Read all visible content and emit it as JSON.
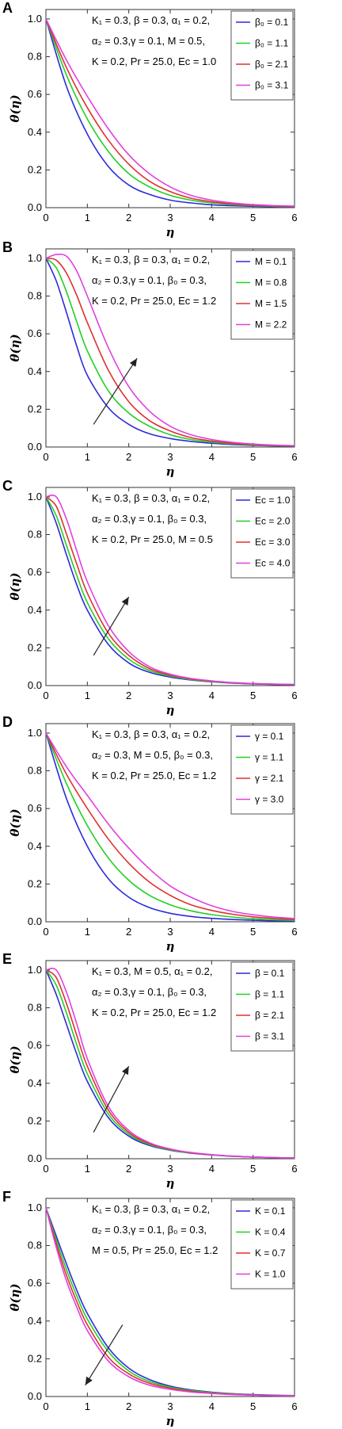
{
  "chart_data": [
    {
      "type": "line",
      "panel_label": "A",
      "xlabel": "η",
      "ylabel": "θ(η)",
      "xlim": [
        0,
        6
      ],
      "ylim": [
        0,
        1.05
      ],
      "xticks": [
        "0",
        "1",
        "2",
        "3",
        "4",
        "5",
        "6"
      ],
      "yticks": [
        "0.0",
        "0.2",
        "0.4",
        "0.6",
        "0.8",
        "1.0"
      ],
      "parameters": [
        "K₁ = 0.3, β = 0.3, α₁ = 0.2,",
        "α₂ = 0.3,γ = 0.1, M = 0.5,",
        "K = 0.2, Pr = 25.0, Ec = 1.0"
      ],
      "legend_position": "top-right",
      "annotation_arrow": null,
      "x": [
        0,
        0.5,
        1,
        1.5,
        2,
        2.5,
        3,
        3.5,
        4,
        4.5,
        5,
        5.5,
        6
      ],
      "series": [
        {
          "name": "β₀ = 0.1",
          "color": "#2b2bd9",
          "values": [
            1.0,
            0.64,
            0.39,
            0.22,
            0.12,
            0.07,
            0.04,
            0.025,
            0.015,
            0.01,
            0.007,
            0.005,
            0.003
          ]
        },
        {
          "name": "β₀ = 1.1",
          "color": "#22d022",
          "values": [
            1.0,
            0.7,
            0.47,
            0.3,
            0.18,
            0.11,
            0.065,
            0.04,
            0.025,
            0.016,
            0.011,
            0.007,
            0.005
          ]
        },
        {
          "name": "β₀ = 2.1",
          "color": "#e03030",
          "values": [
            1.0,
            0.74,
            0.53,
            0.36,
            0.23,
            0.14,
            0.085,
            0.05,
            0.032,
            0.02,
            0.013,
            0.009,
            0.006
          ]
        },
        {
          "name": "β₀ = 3.1",
          "color": "#e040e0",
          "values": [
            1.0,
            0.78,
            0.59,
            0.42,
            0.28,
            0.18,
            0.11,
            0.065,
            0.04,
            0.025,
            0.016,
            0.011,
            0.008
          ]
        }
      ]
    },
    {
      "type": "line",
      "panel_label": "B",
      "xlabel": "η",
      "ylabel": "θ(η)",
      "xlim": [
        0,
        6
      ],
      "ylim": [
        0,
        1.05
      ],
      "xticks": [
        "0",
        "1",
        "2",
        "3",
        "4",
        "5",
        "6"
      ],
      "yticks": [
        "0.0",
        "0.2",
        "0.4",
        "0.6",
        "0.8",
        "1.0"
      ],
      "parameters": [
        "K₁ = 0.3, β = 0.3, α₁ = 0.2,",
        "α₂ = 0.3,γ = 0.1, β₀ = 0.3,",
        "K = 0.2, Pr = 25.0, Ec = 1.2"
      ],
      "legend_position": "top-right",
      "annotation_arrow": {
        "from": [
          1.15,
          0.12
        ],
        "to": [
          2.2,
          0.47
        ]
      },
      "x": [
        0,
        0.25,
        0.5,
        0.75,
        1,
        1.5,
        2,
        2.5,
        3,
        3.5,
        4,
        4.5,
        5,
        5.5,
        6
      ],
      "series": [
        {
          "name": "M = 0.1",
          "color": "#2b2bd9",
          "values": [
            1.0,
            0.88,
            0.71,
            0.53,
            0.38,
            0.21,
            0.12,
            0.07,
            0.045,
            0.03,
            0.02,
            0.013,
            0.009,
            0.006,
            0.004
          ]
        },
        {
          "name": "M = 0.8",
          "color": "#22d022",
          "values": [
            1.0,
            0.95,
            0.82,
            0.66,
            0.51,
            0.3,
            0.18,
            0.11,
            0.065,
            0.04,
            0.026,
            0.017,
            0.011,
            0.007,
            0.005
          ]
        },
        {
          "name": "M = 1.5",
          "color": "#e03030",
          "values": [
            1.0,
            0.99,
            0.92,
            0.8,
            0.66,
            0.41,
            0.24,
            0.14,
            0.085,
            0.05,
            0.032,
            0.02,
            0.013,
            0.008,
            0.006
          ]
        },
        {
          "name": "M = 2.2",
          "color": "#e040e0",
          "values": [
            1.0,
            1.02,
            1.01,
            0.93,
            0.8,
            0.53,
            0.32,
            0.19,
            0.11,
            0.065,
            0.04,
            0.025,
            0.016,
            0.01,
            0.007
          ]
        }
      ]
    },
    {
      "type": "line",
      "panel_label": "C",
      "xlabel": "η",
      "ylabel": "θ(η)",
      "xlim": [
        0,
        6
      ],
      "ylim": [
        0,
        1.05
      ],
      "xticks": [
        "0",
        "1",
        "2",
        "3",
        "4",
        "5",
        "6"
      ],
      "yticks": [
        "0.0",
        "0.2",
        "0.4",
        "0.6",
        "0.8",
        "1.0"
      ],
      "parameters": [
        "K₁ = 0.3, β = 0.3, α₁ = 0.2,",
        "α₂ = 0.3,γ = 0.1, β₀ = 0.3,",
        "K = 0.2, Pr = 25.0, M = 0.5"
      ],
      "legend_position": "top-right",
      "annotation_arrow": {
        "from": [
          1.15,
          0.16
        ],
        "to": [
          2.0,
          0.47
        ]
      },
      "x": [
        0,
        0.25,
        0.5,
        0.75,
        1,
        1.5,
        2,
        2.5,
        3,
        3.5,
        4,
        4.5,
        5,
        5.5,
        6
      ],
      "series": [
        {
          "name": "Ec = 1.0",
          "color": "#2b2bd9",
          "values": [
            1.0,
            0.86,
            0.69,
            0.53,
            0.4,
            0.22,
            0.12,
            0.07,
            0.045,
            0.03,
            0.02,
            0.013,
            0.009,
            0.006,
            0.004
          ]
        },
        {
          "name": "Ec = 2.0",
          "color": "#22d022",
          "values": [
            1.0,
            0.9,
            0.74,
            0.58,
            0.44,
            0.25,
            0.14,
            0.08,
            0.05,
            0.032,
            0.021,
            0.014,
            0.01,
            0.007,
            0.005
          ]
        },
        {
          "name": "Ec = 3.0",
          "color": "#e03030",
          "values": [
            1.0,
            0.95,
            0.8,
            0.64,
            0.49,
            0.28,
            0.16,
            0.09,
            0.055,
            0.035,
            0.023,
            0.015,
            0.01,
            0.007,
            0.005
          ]
        },
        {
          "name": "Ec = 4.0",
          "color": "#e040e0",
          "values": [
            1.0,
            1.0,
            0.88,
            0.71,
            0.55,
            0.32,
            0.18,
            0.1,
            0.06,
            0.038,
            0.025,
            0.016,
            0.011,
            0.008,
            0.006
          ]
        }
      ]
    },
    {
      "type": "line",
      "panel_label": "D",
      "xlabel": "η",
      "ylabel": "θ(η)",
      "xlim": [
        0,
        6
      ],
      "ylim": [
        0,
        1.05
      ],
      "xticks": [
        "0",
        "1",
        "2",
        "3",
        "4",
        "5",
        "6"
      ],
      "yticks": [
        "0.0",
        "0.2",
        "0.4",
        "0.6",
        "0.8",
        "1.0"
      ],
      "parameters": [
        "K₁ = 0.3, β = 0.3, α₁ = 0.2,",
        "α₂ = 0.3, M = 0.5, β₀ = 0.3,",
        "K = 0.2, Pr = 25.0, Ec = 1.2"
      ],
      "legend_position": "top-right",
      "annotation_arrow": null,
      "x": [
        0,
        0.5,
        1,
        1.5,
        2,
        2.5,
        3,
        3.5,
        4,
        4.5,
        5,
        5.5,
        6
      ],
      "series": [
        {
          "name": "γ = 0.1",
          "color": "#2b2bd9",
          "values": [
            1.0,
            0.65,
            0.4,
            0.23,
            0.13,
            0.075,
            0.045,
            0.028,
            0.018,
            0.012,
            0.008,
            0.005,
            0.003
          ]
        },
        {
          "name": "γ = 1.1",
          "color": "#22d022",
          "values": [
            1.0,
            0.73,
            0.51,
            0.34,
            0.22,
            0.14,
            0.09,
            0.058,
            0.038,
            0.025,
            0.016,
            0.011,
            0.007
          ]
        },
        {
          "name": "γ = 2.1",
          "color": "#e03030",
          "values": [
            1.0,
            0.78,
            0.6,
            0.44,
            0.31,
            0.21,
            0.14,
            0.09,
            0.06,
            0.04,
            0.026,
            0.018,
            0.012
          ]
        },
        {
          "name": "γ = 3.0",
          "color": "#e040e0",
          "values": [
            1.0,
            0.82,
            0.67,
            0.52,
            0.39,
            0.28,
            0.19,
            0.13,
            0.085,
            0.055,
            0.037,
            0.025,
            0.017
          ]
        }
      ]
    },
    {
      "type": "line",
      "panel_label": "E",
      "xlabel": "η",
      "ylabel": "θ(η)",
      "xlim": [
        0,
        6
      ],
      "ylim": [
        0,
        1.05
      ],
      "xticks": [
        "0",
        "1",
        "2",
        "3",
        "4",
        "5",
        "6"
      ],
      "yticks": [
        "0.0",
        "0.2",
        "0.4",
        "0.6",
        "0.8",
        "1.0"
      ],
      "parameters": [
        "K₁ = 0.3, M = 0.5, α₁ = 0.2,",
        "α₂ = 0.3,γ = 0.1, β₀ = 0.3,",
        "K = 0.2, Pr = 25.0, Ec = 1.2"
      ],
      "legend_position": "top-right",
      "annotation_arrow": {
        "from": [
          1.15,
          0.14
        ],
        "to": [
          2.0,
          0.49
        ]
      },
      "x": [
        0,
        0.25,
        0.5,
        0.75,
        1,
        1.5,
        2,
        2.5,
        3,
        3.5,
        4,
        4.5,
        5,
        5.5,
        6
      ],
      "series": [
        {
          "name": "β = 0.1",
          "color": "#2b2bd9",
          "values": [
            1.0,
            0.87,
            0.71,
            0.55,
            0.41,
            0.22,
            0.12,
            0.07,
            0.045,
            0.03,
            0.02,
            0.013,
            0.009,
            0.006,
            0.004
          ]
        },
        {
          "name": "β = 1.1",
          "color": "#22d022",
          "values": [
            1.0,
            0.92,
            0.77,
            0.6,
            0.45,
            0.24,
            0.13,
            0.075,
            0.047,
            0.031,
            0.021,
            0.014,
            0.009,
            0.006,
            0.004
          ]
        },
        {
          "name": "β = 2.1",
          "color": "#e03030",
          "values": [
            1.0,
            0.96,
            0.82,
            0.65,
            0.49,
            0.26,
            0.14,
            0.08,
            0.05,
            0.032,
            0.021,
            0.014,
            0.009,
            0.006,
            0.004
          ]
        },
        {
          "name": "β = 3.1",
          "color": "#e040e0",
          "values": [
            1.0,
            1.0,
            0.88,
            0.71,
            0.53,
            0.28,
            0.15,
            0.085,
            0.052,
            0.033,
            0.022,
            0.014,
            0.009,
            0.006,
            0.004
          ]
        }
      ]
    },
    {
      "type": "line",
      "panel_label": "F",
      "xlabel": "η",
      "ylabel": "θ(η)",
      "xlim": [
        0,
        6
      ],
      "ylim": [
        0,
        1.05
      ],
      "xticks": [
        "0",
        "1",
        "2",
        "3",
        "4",
        "5",
        "6"
      ],
      "yticks": [
        "0.0",
        "0.2",
        "0.4",
        "0.6",
        "0.8",
        "1.0"
      ],
      "parameters": [
        "K₁ = 0.3, β = 0.3, α₁ = 0.2,",
        "α₂ = 0.3,γ = 0.1, β₀ = 0.3,",
        "M = 0.5, Pr = 25.0, Ec = 1.2"
      ],
      "legend_position": "top-right",
      "annotation_arrow": {
        "from": [
          1.85,
          0.38
        ],
        "to": [
          0.95,
          0.06
        ]
      },
      "x": [
        0,
        0.25,
        0.5,
        0.75,
        1,
        1.5,
        2,
        2.5,
        3,
        3.5,
        4,
        4.5,
        5,
        5.5,
        6
      ],
      "series": [
        {
          "name": "K = 0.1",
          "color": "#2b2bd9",
          "values": [
            1.0,
            0.85,
            0.7,
            0.56,
            0.44,
            0.26,
            0.15,
            0.09,
            0.055,
            0.035,
            0.023,
            0.015,
            0.01,
            0.007,
            0.005
          ]
        },
        {
          "name": "K = 0.4",
          "color": "#22d022",
          "values": [
            1.0,
            0.83,
            0.67,
            0.53,
            0.41,
            0.24,
            0.135,
            0.08,
            0.05,
            0.032,
            0.021,
            0.014,
            0.009,
            0.006,
            0.004
          ]
        },
        {
          "name": "K = 0.7",
          "color": "#e03030",
          "values": [
            1.0,
            0.81,
            0.64,
            0.5,
            0.38,
            0.21,
            0.12,
            0.07,
            0.044,
            0.028,
            0.018,
            0.012,
            0.008,
            0.005,
            0.004
          ]
        },
        {
          "name": "K = 1.0",
          "color": "#e040e0",
          "values": [
            1.0,
            0.79,
            0.61,
            0.47,
            0.35,
            0.19,
            0.105,
            0.06,
            0.038,
            0.024,
            0.016,
            0.01,
            0.007,
            0.005,
            0.003
          ]
        }
      ]
    }
  ]
}
